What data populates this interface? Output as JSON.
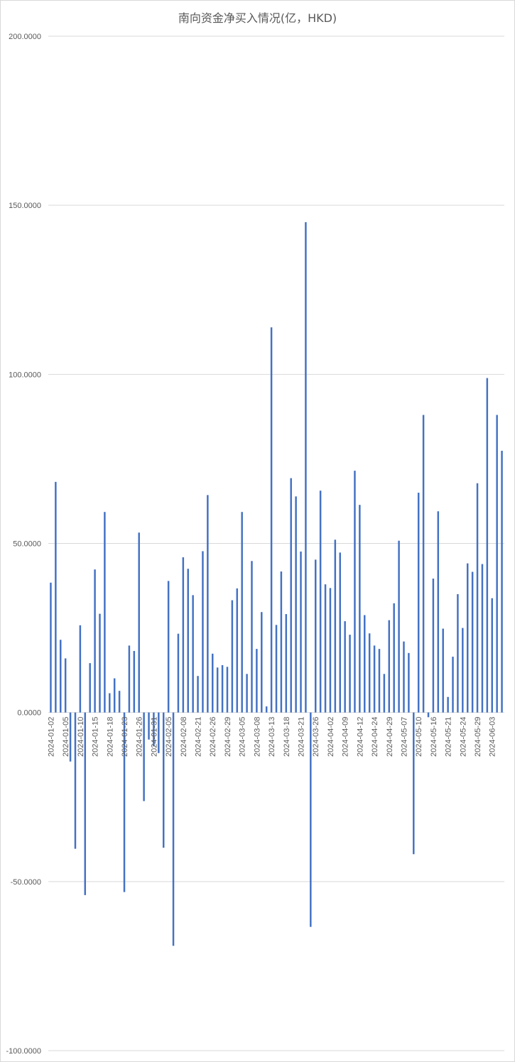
{
  "chart_data": {
    "type": "bar",
    "title": "南向资金净买入情况(亿，HKD)",
    "xlabel": "",
    "ylabel": "",
    "ylim": [
      -100,
      200
    ],
    "yticks": [
      200,
      150,
      100,
      50,
      0,
      -50,
      -100
    ],
    "ytick_labels": [
      "200.0000",
      "150.0000",
      "100.0000",
      "50.0000",
      "0.0000",
      "-50.0000",
      "-100.0000"
    ],
    "grid": true,
    "legend": "none",
    "bar_color": "#4472c4",
    "grid_color": "#d9d9d9",
    "x_labels": [
      {
        "index": 0,
        "text": "2024-01-02"
      },
      {
        "index": 3,
        "text": "2024-01-05"
      },
      {
        "index": 6,
        "text": "2024-01-10"
      },
      {
        "index": 9,
        "text": "2024-01-15"
      },
      {
        "index": 12,
        "text": "2024-01-18"
      },
      {
        "index": 15,
        "text": "2024-01-23"
      },
      {
        "index": 18,
        "text": "2024-01-26"
      },
      {
        "index": 21,
        "text": "2024-01-31"
      },
      {
        "index": 24,
        "text": "2024-02-05"
      },
      {
        "index": 27,
        "text": "2024-02-08"
      },
      {
        "index": 30,
        "text": "2024-02-21"
      },
      {
        "index": 33,
        "text": "2024-02-26"
      },
      {
        "index": 36,
        "text": "2024-02-29"
      },
      {
        "index": 39,
        "text": "2024-03-05"
      },
      {
        "index": 42,
        "text": "2024-03-08"
      },
      {
        "index": 45,
        "text": "2024-03-13"
      },
      {
        "index": 48,
        "text": "2024-03-18"
      },
      {
        "index": 51,
        "text": "2024-03-21"
      },
      {
        "index": 54,
        "text": "2024-03-26"
      },
      {
        "index": 57,
        "text": "2024-04-02"
      },
      {
        "index": 60,
        "text": "2024-04-09"
      },
      {
        "index": 63,
        "text": "2024-04-12"
      },
      {
        "index": 66,
        "text": "2024-04-24"
      },
      {
        "index": 69,
        "text": "2024-04-29"
      },
      {
        "index": 72,
        "text": "2024-05-07"
      },
      {
        "index": 75,
        "text": "2024-05-10"
      },
      {
        "index": 78,
        "text": "2024-05-16"
      },
      {
        "index": 81,
        "text": "2024-05-21"
      },
      {
        "index": 84,
        "text": "2024-05-24"
      },
      {
        "index": 87,
        "text": "2024-05-29"
      },
      {
        "index": 90,
        "text": "2024-06-03"
      }
    ],
    "values": [
      38.4,
      68.2,
      21.5,
      16.0,
      -14.5,
      -40.3,
      25.8,
      -54.0,
      14.6,
      42.3,
      29.2,
      59.3,
      5.7,
      10.1,
      6.4,
      -53.1,
      19.8,
      18.2,
      53.2,
      -26.2,
      -8.0,
      -10.0,
      -12.0,
      -40.0,
      38.9,
      -69.0,
      23.3,
      45.9,
      42.5,
      34.7,
      10.8,
      47.7,
      64.3,
      17.4,
      13.3,
      14.0,
      13.5,
      33.2,
      36.7,
      59.3,
      11.4,
      44.8,
      18.8,
      29.7,
      1.8,
      113.9,
      25.9,
      41.7,
      29.1,
      69.3,
      63.9,
      47.6,
      145.0,
      -63.4,
      45.2,
      65.6,
      37.9,
      36.8,
      51.1,
      47.3,
      27.0,
      23.0,
      71.5,
      61.4,
      28.8,
      23.4,
      19.8,
      18.8,
      11.4,
      27.3,
      32.3,
      50.8,
      21.0,
      17.6,
      -41.9,
      65.0,
      88.0,
      -1.4,
      39.6,
      59.5,
      24.8,
      4.6,
      16.5,
      35.0,
      25.0,
      44.1,
      41.6,
      67.8,
      43.9,
      98.9,
      33.8,
      88.0,
      77.4
    ]
  }
}
